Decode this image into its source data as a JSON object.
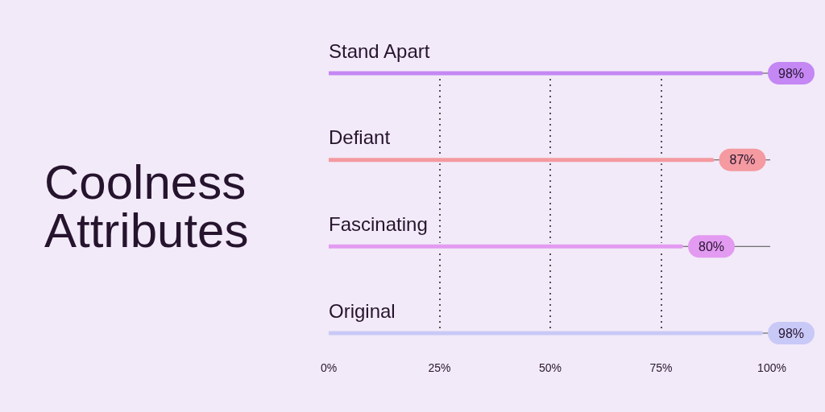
{
  "chart_data": {
    "type": "bar",
    "orientation": "horizontal",
    "title": "Coolness Attributes",
    "categories": [
      "Stand Apart",
      "Defiant",
      "Fascinating",
      "Original"
    ],
    "values": [
      98,
      87,
      80,
      98
    ],
    "colors": [
      "#c487f4",
      "#f49aa0",
      "#e39af1",
      "#c9c9f7"
    ],
    "value_labels": [
      "98%",
      "87%",
      "80%",
      "98%"
    ],
    "xlim": [
      0,
      100
    ],
    "xticks": [
      {
        "value": 0,
        "label": "0%"
      },
      {
        "value": 25,
        "label": "25%"
      },
      {
        "value": 50,
        "label": "50%"
      },
      {
        "value": 75,
        "label": "75%"
      },
      {
        "value": 100,
        "label": "100%"
      }
    ],
    "grid": "x"
  }
}
